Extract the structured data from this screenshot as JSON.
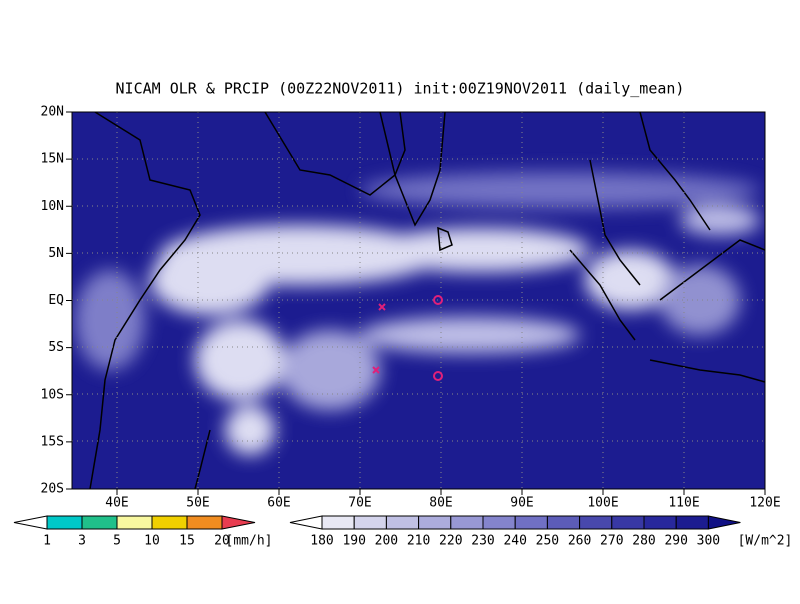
{
  "title": "NICAM OLR & PRCIP (00Z22NOV2011) init:00Z19NOV2011 (daily_mean)",
  "map": {
    "lat_labels": [
      "20N",
      "15N",
      "10N",
      "5N",
      "EQ",
      "5S",
      "10S",
      "15S",
      "20S"
    ],
    "lon_labels": [
      "40E",
      "50E",
      "60E",
      "70E",
      "80E",
      "90E",
      "100E",
      "110E",
      "120E"
    ]
  },
  "precip_colorbar": {
    "labels": [
      "1",
      "3",
      "5",
      "10",
      "15",
      "20"
    ],
    "unit": "[mm/h]",
    "colors": [
      "#ffffff",
      "#00c8c8",
      "#20c08a",
      "#f8f8a0",
      "#f0d000",
      "#f08c20",
      "#e83c50"
    ]
  },
  "olr_colorbar": {
    "labels": [
      "180",
      "190",
      "200",
      "210",
      "220",
      "230",
      "240",
      "250",
      "260",
      "270",
      "280",
      "290",
      "300"
    ],
    "unit": "[W/m^2]",
    "colors": [
      "#ffffff",
      "#e8e8f4",
      "#d4d4ec",
      "#c0c0e4",
      "#acacdc",
      "#9898d4",
      "#8484cc",
      "#7070c4",
      "#5c5cb8",
      "#4848ac",
      "#3838a4",
      "#28289c",
      "#1c1c90",
      "#101084"
    ]
  }
}
